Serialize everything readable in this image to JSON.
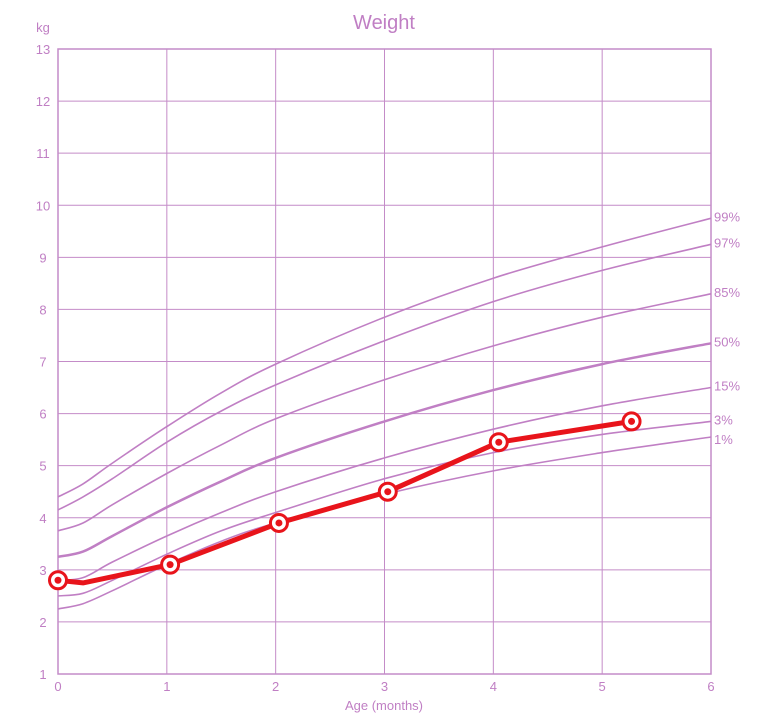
{
  "chart_data": {
    "type": "line",
    "title": "Weight",
    "ylabel": "kg",
    "xlabel": "Age (months)",
    "xlim": [
      0,
      6
    ],
    "ylim": [
      1,
      13
    ],
    "x_ticks": [
      "0",
      "1",
      "2",
      "3",
      "4",
      "5",
      "6"
    ],
    "y_ticks": [
      "1",
      "2",
      "3",
      "4",
      "5",
      "6",
      "7",
      "8",
      "9",
      "10",
      "11",
      "12",
      "13"
    ],
    "grid": true,
    "colors": {
      "grid": "#c48cc8",
      "percentile": "#c07fc4",
      "text": "#c07fc4",
      "measurement": "#e8141b"
    },
    "percentile_x": [
      0,
      0.23,
      0.5,
      1,
      1.5,
      2,
      3,
      4,
      5,
      6
    ],
    "percentiles": [
      {
        "name": "99%",
        "values": [
          4.4,
          4.65,
          5.05,
          5.75,
          6.4,
          6.95,
          7.85,
          8.6,
          9.2,
          9.75
        ]
      },
      {
        "name": "97%",
        "values": [
          4.15,
          4.4,
          4.75,
          5.45,
          6.05,
          6.55,
          7.4,
          8.15,
          8.75,
          9.25
        ]
      },
      {
        "name": "85%",
        "values": [
          3.75,
          3.9,
          4.25,
          4.85,
          5.4,
          5.9,
          6.65,
          7.3,
          7.85,
          8.3
        ]
      },
      {
        "name": "50%",
        "values": [
          3.25,
          3.35,
          3.65,
          4.2,
          4.7,
          5.15,
          5.85,
          6.45,
          6.95,
          7.35
        ]
      },
      {
        "name": "15%",
        "values": [
          2.8,
          2.85,
          3.15,
          3.65,
          4.1,
          4.5,
          5.15,
          5.7,
          6.15,
          6.5
        ]
      },
      {
        "name": "3%",
        "values": [
          2.5,
          2.55,
          2.8,
          3.3,
          3.75,
          4.1,
          4.75,
          5.25,
          5.6,
          5.85
        ]
      },
      {
        "name": "1%",
        "values": [
          2.25,
          2.35,
          2.6,
          3.1,
          3.55,
          3.9,
          4.45,
          4.9,
          5.25,
          5.55
        ]
      }
    ],
    "series": [
      {
        "x": [
          0,
          0.23,
          1.03,
          2.03,
          3.03,
          4.05,
          5.27
        ],
        "values": [
          2.8,
          2.75,
          3.1,
          3.9,
          4.5,
          5.45,
          5.85
        ],
        "markers": [
          true,
          false,
          true,
          true,
          true,
          true,
          true
        ]
      }
    ]
  }
}
